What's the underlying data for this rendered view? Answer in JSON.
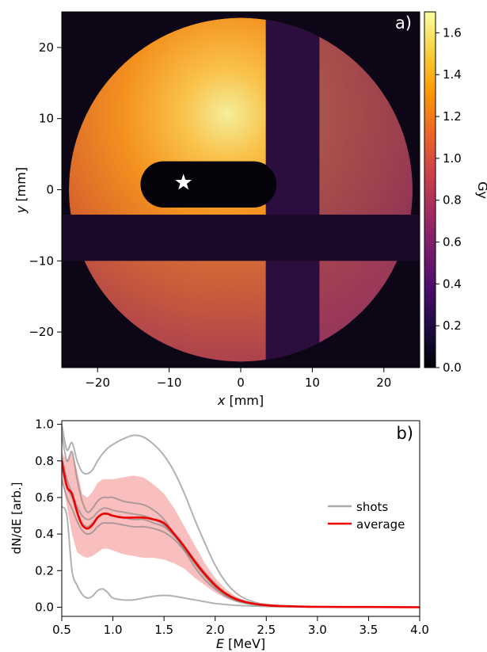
{
  "chart_data": [
    {
      "type": "heatmap",
      "panel_label": "a)",
      "xlabel_var": "x",
      "xlabel_unit": " [mm]",
      "ylabel_var": "y",
      "ylabel_unit": " [mm]",
      "xlim": [
        -25,
        25
      ],
      "ylim": [
        -25,
        25
      ],
      "xticks": [
        -20,
        -10,
        0,
        10,
        20
      ],
      "xtick_labels": [
        "−20",
        "−10",
        "0",
        "10",
        "20"
      ],
      "yticks": [
        20,
        10,
        0,
        -10,
        -20
      ],
      "ytick_labels": [
        "20",
        "10",
        "0",
        "−10",
        "−20"
      ],
      "colorbar": {
        "label": "Gy",
        "range": [
          0,
          1.7
        ],
        "ticks": [
          0.0,
          0.2,
          0.4,
          0.6,
          0.8,
          1.0,
          1.2,
          1.4,
          1.6
        ],
        "tick_labels": [
          "0.0",
          "0.2",
          "0.4",
          "0.6",
          "0.8",
          "1.0",
          "1.2",
          "1.4",
          "1.6"
        ],
        "colormap": "inferno",
        "colors": [
          "#000004",
          "#1b0c41",
          "#4a0c6b",
          "#781c6d",
          "#a52c60",
          "#cf4446",
          "#ed6925",
          "#fb9b06",
          "#f7d13d",
          "#fcffa4"
        ]
      },
      "features": {
        "field_radius_mm": 24,
        "max_dose_Gy": 1.7,
        "dose_peak_center_mm": [
          -2,
          10
        ],
        "horizontal_shadow_y_mm": [
          -10,
          -3.5
        ],
        "vertical_shadow_x_mm": [
          3.5,
          11
        ],
        "slot_x_mm": [
          -14,
          5
        ],
        "slot_y_mm": [
          -2.5,
          4
        ],
        "star_position_mm": [
          -8,
          1
        ]
      },
      "grid": false
    },
    {
      "type": "line",
      "panel_label": "b)",
      "xlabel_var": "E",
      "xlabel_unit": " [MeV]",
      "ylabel_text": "dN/dE [arb.]",
      "xlim": [
        0.5,
        4.0
      ],
      "ylim": [
        -0.05,
        1.02
      ],
      "xticks": [
        0.5,
        1.0,
        1.5,
        2.0,
        2.5,
        3.0,
        3.5,
        4.0
      ],
      "xtick_labels": [
        "0.5",
        "1.0",
        "1.5",
        "2.0",
        "2.5",
        "3.0",
        "3.5",
        "4.0"
      ],
      "yticks": [
        0.0,
        0.2,
        0.4,
        0.6,
        0.8,
        1.0
      ],
      "ytick_labels": [
        "0.0",
        "0.2",
        "0.4",
        "0.6",
        "0.8",
        "1.0"
      ],
      "legend_position": "right",
      "legend": [
        {
          "label": "shots",
          "color": "#aaaaaa"
        },
        {
          "label": "average",
          "color": "#ee0000"
        }
      ],
      "grid": false,
      "shots_color": "#7f7f7f",
      "average_color": "#ee0000",
      "band_color": "#f8b4b4",
      "x": [
        0.5,
        0.55,
        0.6,
        0.65,
        0.7,
        0.75,
        0.8,
        0.85,
        0.9,
        0.95,
        1.0,
        1.1,
        1.2,
        1.3,
        1.4,
        1.5,
        1.6,
        1.7,
        1.8,
        1.9,
        2.0,
        2.1,
        2.2,
        2.3,
        2.4,
        2.5,
        2.6,
        2.8,
        3.0,
        3.5,
        4.0
      ],
      "series": [
        {
          "role": "shot",
          "values": [
            1.0,
            0.86,
            0.9,
            0.8,
            0.74,
            0.73,
            0.75,
            0.8,
            0.84,
            0.87,
            0.89,
            0.92,
            0.94,
            0.93,
            0.89,
            0.83,
            0.74,
            0.62,
            0.48,
            0.35,
            0.23,
            0.14,
            0.08,
            0.045,
            0.025,
            0.015,
            0.01,
            0.005,
            0.003,
            0.001,
            0.0
          ]
        },
        {
          "role": "shot",
          "values": [
            0.95,
            0.8,
            0.85,
            0.7,
            0.58,
            0.52,
            0.54,
            0.58,
            0.6,
            0.6,
            0.6,
            0.58,
            0.57,
            0.56,
            0.53,
            0.48,
            0.4,
            0.31,
            0.22,
            0.15,
            0.1,
            0.06,
            0.035,
            0.02,
            0.012,
            0.008,
            0.005,
            0.003,
            0.002,
            0.001,
            0.0
          ]
        },
        {
          "role": "shot",
          "values": [
            0.82,
            0.7,
            0.62,
            0.55,
            0.5,
            0.48,
            0.49,
            0.52,
            0.54,
            0.54,
            0.53,
            0.52,
            0.51,
            0.5,
            0.48,
            0.45,
            0.39,
            0.32,
            0.24,
            0.17,
            0.11,
            0.07,
            0.04,
            0.025,
            0.015,
            0.01,
            0.007,
            0.004,
            0.002,
            0.001,
            0.0
          ]
        },
        {
          "role": "shot",
          "values": [
            0.76,
            0.66,
            0.6,
            0.52,
            0.46,
            0.44,
            0.46,
            0.49,
            0.51,
            0.51,
            0.5,
            0.49,
            0.48,
            0.48,
            0.46,
            0.44,
            0.39,
            0.33,
            0.26,
            0.19,
            0.13,
            0.08,
            0.05,
            0.03,
            0.018,
            0.012,
            0.008,
            0.004,
            0.002,
            0.001,
            0.0
          ]
        },
        {
          "role": "shot",
          "values": [
            0.7,
            0.6,
            0.54,
            0.47,
            0.42,
            0.4,
            0.41,
            0.44,
            0.46,
            0.46,
            0.46,
            0.45,
            0.44,
            0.44,
            0.43,
            0.41,
            0.37,
            0.31,
            0.25,
            0.18,
            0.12,
            0.07,
            0.045,
            0.028,
            0.017,
            0.011,
            0.007,
            0.004,
            0.002,
            0.001,
            0.0
          ]
        },
        {
          "role": "shot",
          "values": [
            0.55,
            0.5,
            0.2,
            0.12,
            0.07,
            0.05,
            0.06,
            0.09,
            0.1,
            0.08,
            0.05,
            0.04,
            0.04,
            0.05,
            0.06,
            0.065,
            0.06,
            0.05,
            0.04,
            0.03,
            0.02,
            0.015,
            0.01,
            0.008,
            0.006,
            0.004,
            0.003,
            0.002,
            0.001,
            0.0,
            0.0
          ]
        },
        {
          "role": "average",
          "values": [
            0.8,
            0.66,
            0.62,
            0.52,
            0.45,
            0.43,
            0.45,
            0.49,
            0.51,
            0.51,
            0.5,
            0.49,
            0.49,
            0.49,
            0.48,
            0.46,
            0.4,
            0.33,
            0.25,
            0.18,
            0.12,
            0.075,
            0.045,
            0.028,
            0.017,
            0.011,
            0.007,
            0.004,
            0.002,
            0.001,
            0.0
          ]
        },
        {
          "role": "band_upper",
          "values": [
            0.85,
            0.8,
            0.85,
            0.75,
            0.62,
            0.6,
            0.63,
            0.68,
            0.7,
            0.7,
            0.7,
            0.71,
            0.72,
            0.71,
            0.67,
            0.62,
            0.54,
            0.44,
            0.34,
            0.24,
            0.16,
            0.1,
            0.06,
            0.035,
            0.02,
            0.013,
            0.008,
            0.005,
            0.003,
            0.001,
            0.0
          ]
        },
        {
          "role": "band_lower",
          "values": [
            0.72,
            0.55,
            0.4,
            0.3,
            0.28,
            0.27,
            0.28,
            0.3,
            0.32,
            0.32,
            0.31,
            0.29,
            0.28,
            0.27,
            0.27,
            0.26,
            0.24,
            0.21,
            0.16,
            0.12,
            0.08,
            0.05,
            0.03,
            0.02,
            0.012,
            0.008,
            0.005,
            0.003,
            0.001,
            0.0,
            0.0
          ]
        }
      ]
    }
  ]
}
